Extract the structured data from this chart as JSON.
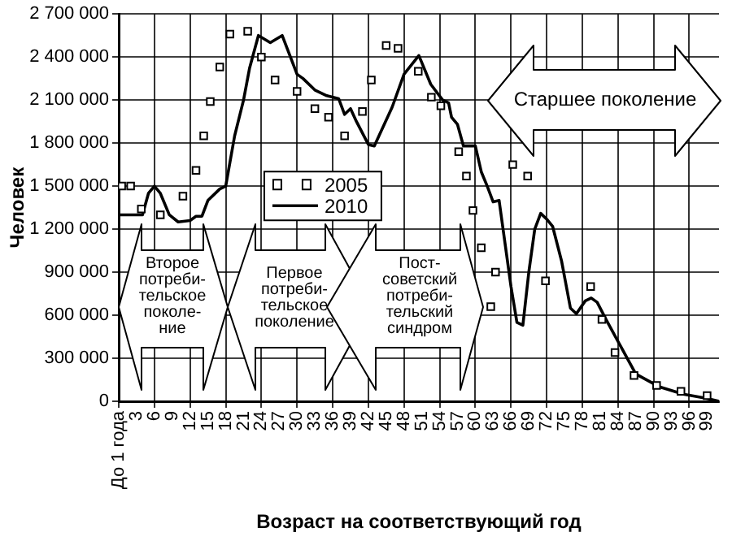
{
  "chart_data": {
    "type": "line",
    "xlabel": "Возраст на соответствующий год",
    "ylabel": "Человек",
    "xlim": [
      0,
      101
    ],
    "xticks": [
      {
        "value": 0,
        "label": "До 1 года"
      },
      3,
      6,
      9,
      12,
      15,
      18,
      21,
      24,
      27,
      30,
      33,
      36,
      39,
      42,
      45,
      48,
      51,
      54,
      57,
      60,
      63,
      66,
      69,
      72,
      75,
      78,
      81,
      84,
      87,
      90,
      93,
      96,
      99
    ],
    "ylim": [
      0,
      2700000
    ],
    "yticks": [
      0,
      {
        "value": 300000,
        "label": "300 000"
      },
      {
        "value": 600000,
        "label": "600 000"
      },
      {
        "value": 900000,
        "label": "900 000"
      },
      {
        "value": 1200000,
        "label": "1 200 000"
      },
      {
        "value": 1500000,
        "label": "1 500 000"
      },
      {
        "value": 1800000,
        "label": "1 800 000"
      },
      {
        "value": 2100000,
        "label": "2 100 000"
      },
      {
        "value": 2400000,
        "label": "2 400 000"
      },
      {
        "value": 2700000,
        "label": "2 700 000"
      }
    ],
    "grid": true,
    "legend": "center",
    "annotations": [
      "Второе потреби-тельское поколе-ние",
      "Первое потреби-тельское поколение",
      "Пост-советский потреби-тельский синдром",
      "Старшее поколение"
    ],
    "series": [
      {
        "name": "2005",
        "type": "scatter",
        "marker": "square",
        "color": "#000000",
        "x": [
          0.5,
          2,
          3.8,
          7,
          10.8,
          13,
          14.3,
          15.4,
          17,
          18.7,
          21.7,
          24,
          26.3,
          30,
          33,
          35.3,
          38,
          41,
          42.5,
          45,
          47,
          50.4,
          52.6,
          54.2,
          57.2,
          58.5,
          59.6,
          61,
          62.6,
          63.4,
          66.3,
          68.8,
          71.8,
          79.4,
          81.3,
          83.5,
          86.7,
          90.5,
          94.6,
          99
        ],
        "values": [
          1500000,
          1500000,
          1340000,
          1300000,
          1430000,
          1610000,
          1850000,
          2090000,
          2330000,
          2560000,
          2580000,
          2400000,
          2240000,
          2160000,
          2040000,
          1980000,
          1850000,
          2020000,
          2240000,
          2480000,
          2460000,
          2300000,
          2120000,
          2060000,
          1740000,
          1570000,
          1330000,
          1070000,
          660000,
          900000,
          1650000,
          1570000,
          840000,
          800000,
          570000,
          340000,
          180000,
          110000,
          70000,
          40000
        ]
      },
      {
        "name": "2010",
        "type": "line",
        "line_style": "solid",
        "marker": "none",
        "color": "#000000",
        "x": [
          0,
          4,
          5,
          6,
          7,
          8.5,
          10,
          12,
          13,
          14,
          15,
          17,
          18,
          19.5,
          21,
          22,
          23.5,
          25.5,
          27.5,
          30,
          31,
          33,
          35,
          37,
          38,
          39,
          40,
          42,
          43,
          46,
          48,
          50.5,
          52.5,
          54.5,
          55.5,
          56,
          57,
          58,
          60,
          61,
          62,
          63,
          64,
          65,
          66,
          67,
          68,
          69,
          70,
          71,
          72,
          73,
          74.5,
          76,
          77,
          78.5,
          79.5,
          80.5,
          82,
          84.5,
          87,
          91,
          95,
          99,
          101
        ],
        "values": [
          1300000,
          1300000,
          1450000,
          1500000,
          1450000,
          1300000,
          1250000,
          1260000,
          1290000,
          1290000,
          1400000,
          1480000,
          1500000,
          1850000,
          2100000,
          2320000,
          2550000,
          2500000,
          2550000,
          2280000,
          2250000,
          2170000,
          2130000,
          2110000,
          2000000,
          2040000,
          1950000,
          1790000,
          1780000,
          2050000,
          2280000,
          2410000,
          2210000,
          2100000,
          2080000,
          1980000,
          1930000,
          1780000,
          1780000,
          1600000,
          1500000,
          1390000,
          1400000,
          1100000,
          800000,
          550000,
          530000,
          900000,
          1200000,
          1310000,
          1270000,
          1220000,
          980000,
          650000,
          610000,
          700000,
          720000,
          690000,
          570000,
          380000,
          190000,
          100000,
          50000,
          20000,
          0
        ]
      }
    ]
  }
}
